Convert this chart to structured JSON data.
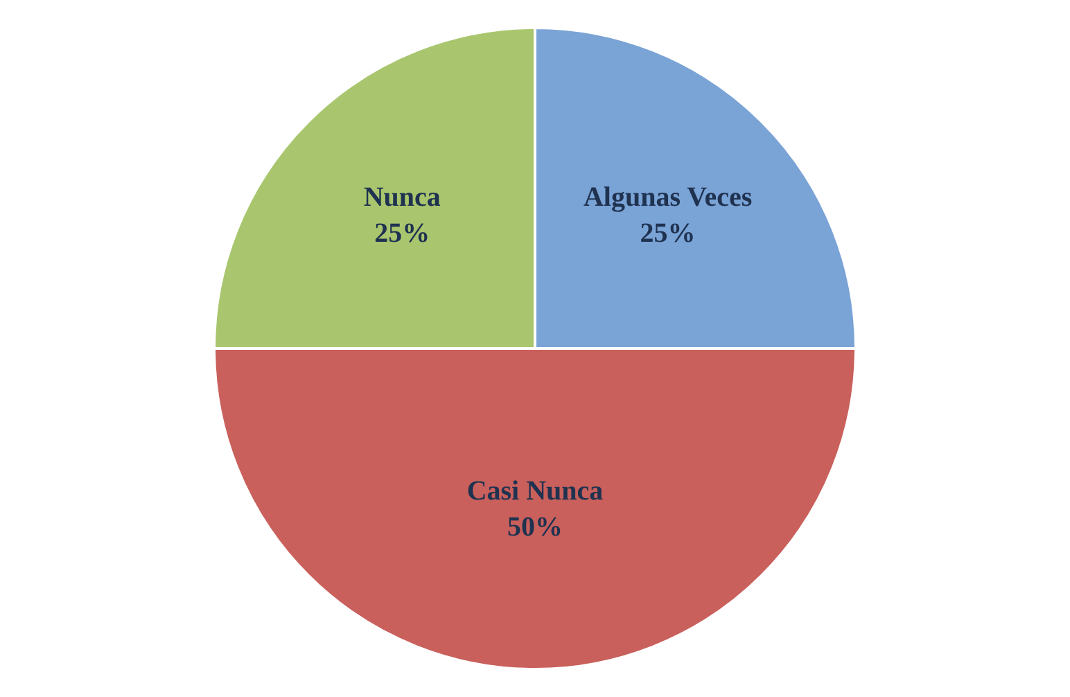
{
  "chart_data": {
    "type": "pie",
    "categories": [
      "Algunas Veces",
      "Casi Nunca",
      "Nunca"
    ],
    "values": [
      25,
      50,
      25
    ],
    "value_labels": [
      "25%",
      "50%",
      "25%"
    ],
    "colors": [
      "#7aa3d6",
      "#c9605c",
      "#a9c66e"
    ],
    "legend": false
  }
}
